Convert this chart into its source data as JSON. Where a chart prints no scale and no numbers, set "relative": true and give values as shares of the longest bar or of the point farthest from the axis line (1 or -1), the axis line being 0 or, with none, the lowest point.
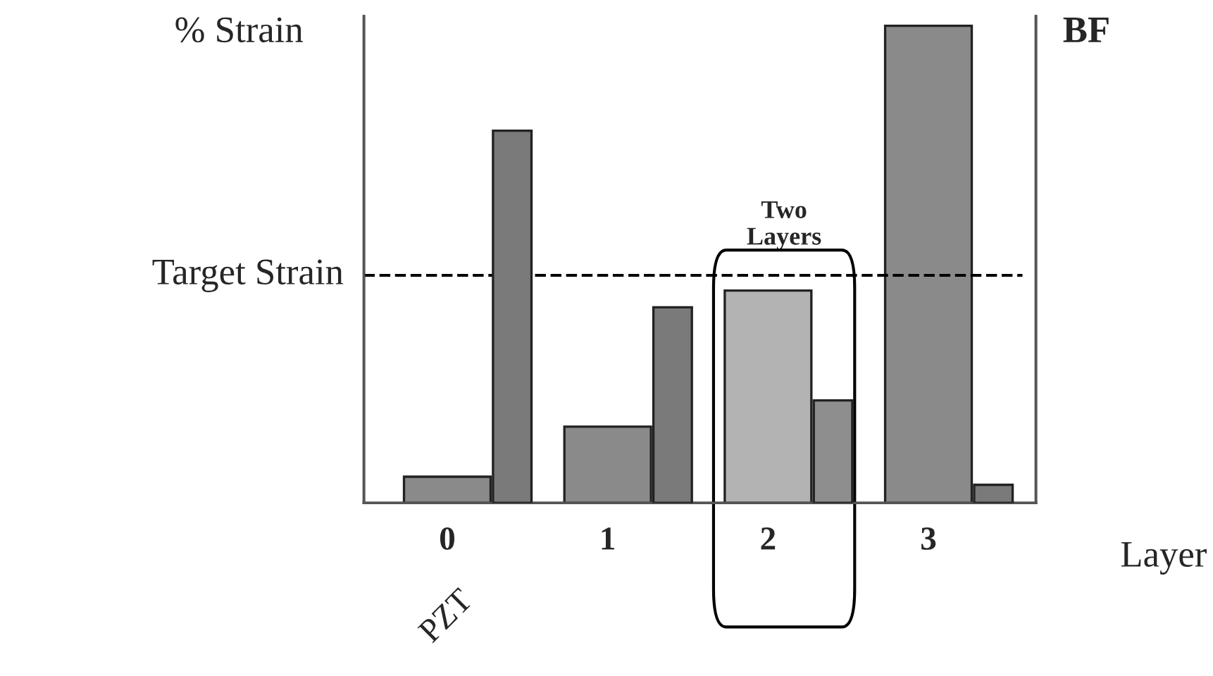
{
  "chart_data": {
    "type": "bar",
    "relative": true,
    "ylabel": "% Strain",
    "y2label": "BF",
    "xlabel": "Layer",
    "categories": [
      "0",
      "1",
      "2",
      "3"
    ],
    "series": [
      {
        "colors": [
          "#8a8a8a",
          "#8a8a8a",
          "#b3b3b3",
          "#8a8a8a"
        ],
        "values": [
          0.055,
          0.16,
          0.445,
          1
        ]
      },
      {
        "axis": "y2",
        "colors": [
          "#7a7a7a",
          "#7a7a7a",
          "#8e8e8e",
          "#7a7a7a"
        ],
        "values": [
          0.78,
          0.41,
          0.215,
          0.038
        ]
      }
    ],
    "ref_lines": [
      {
        "axis": "y",
        "value": 0.477,
        "label": "Target Strain",
        "line_style": "dashed",
        "color": "#000000"
      }
    ],
    "annotations": [
      "Two Layers",
      "PZT"
    ],
    "legend": false
  }
}
